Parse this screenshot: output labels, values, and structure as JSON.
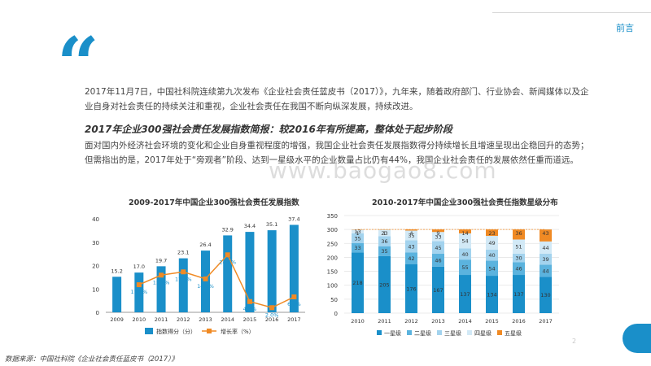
{
  "header": {
    "tab_label": "前言"
  },
  "intro_text": "2017年11月7日，中国社科院连续第九次发布《企业社会责任蓝皮书（2017）》，九年来，随着政府部门、行业协会、新闻媒体以及企业自身对社会责任的持续关注和重视，企业社会责任在我国不断向纵深发展，持续改进。",
  "subheading": "2017年企业300强社会责任发展指数简报：较2016年有所提高，整体处于起步阶段",
  "paragraph": "面对国内外经济社会环境的变化和企业自身重视程度的增强，我国企业社会责任发展指数得分持续增长且增速呈现出企稳回升的态势；但需指出的是，2017年处于“旁观者”阶段、达到一星级水平的企业数量占比仍有44%，我国企业社会责任的发展依然任重而道远。",
  "watermark": "www.baogao8.com",
  "source_note": "数据来源：中国社科院《企业社会责任蓝皮书（2017）》",
  "page_number": "2",
  "colors": {
    "accent": "#1a8fc9",
    "line": "#f08a24",
    "star1": "#1a8fc9",
    "star2": "#5bb3de",
    "star3": "#a3d3ee",
    "star4": "#d2e9f6",
    "star5": "#f08a24"
  },
  "chart_data": [
    {
      "type": "bar",
      "title": "2009-2017年中国企业300强社会责任发展指数",
      "categories": [
        "2009",
        "2010",
        "2011",
        "2012",
        "2013",
        "2014",
        "2015",
        "2016",
        "2017"
      ],
      "ylim": [
        0,
        40
      ],
      "yticks": [
        "0",
        "10",
        "20",
        "30",
        "40"
      ],
      "series": [
        {
          "name": "指数得分（分）",
          "type": "bar",
          "values": [
            15.2,
            17.0,
            19.7,
            23.1,
            26.4,
            32.9,
            34.4,
            35.1,
            37.4
          ],
          "labels": [
            "15.2",
            "17.0",
            "19.7",
            "23.1",
            "26.4",
            "32.9",
            "34.4",
            "35.1",
            "37.4"
          ]
        },
        {
          "name": "增长率（%）",
          "type": "line",
          "values": [
            null,
            11.8,
            15.9,
            17.3,
            14.3,
            24.6,
            4.6,
            2.0,
            6.6
          ],
          "labels": [
            "",
            "11.8%",
            "15.9%",
            "17.3%",
            "14.3%",
            "24.6%",
            "4.6%",
            "2.0%",
            "6.6%"
          ]
        }
      ]
    },
    {
      "type": "bar",
      "stacked": true,
      "title": "2010-2017年中国企业300强社会责任指数星级分布",
      "categories": [
        "2010",
        "2011",
        "2012",
        "2013",
        "2014",
        "2015",
        "2016",
        "2017"
      ],
      "ylim": [
        0,
        350
      ],
      "yticks": [
        "0",
        "50",
        "100",
        "150",
        "200",
        "250",
        "300",
        "350"
      ],
      "series": [
        {
          "name": "一星级",
          "values": [
            218,
            205,
            176,
            167,
            137,
            134,
            137,
            130
          ]
        },
        {
          "name": "二星级",
          "values": [
            33,
            35,
            42,
            46,
            55,
            54,
            46,
            44
          ]
        },
        {
          "name": "三星级",
          "values": [
            35,
            36,
            43,
            45,
            40,
            40,
            30,
            39
          ]
        },
        {
          "name": "四星级",
          "values": [
            13,
            23,
            35,
            33,
            54,
            49,
            51,
            44
          ]
        },
        {
          "name": "五星级",
          "values": [
            1,
            1,
            4,
            9,
            14,
            23,
            36,
            43
          ]
        }
      ]
    }
  ]
}
